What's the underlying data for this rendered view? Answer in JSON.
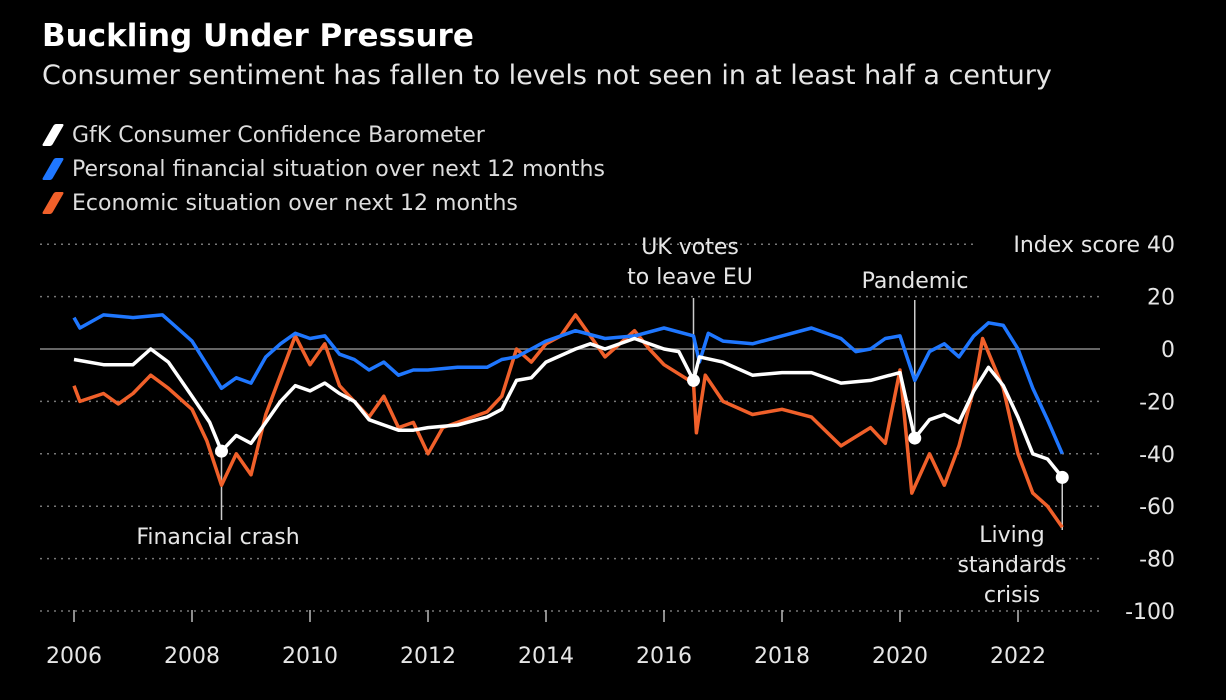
{
  "chart_data": {
    "type": "line",
    "title": "Buckling Under Pressure",
    "subtitle": "Consumer sentiment has fallen to levels not seen in at least half a century",
    "ylabel": "Index score",
    "ylim": [
      -100,
      40
    ],
    "yticks": [
      40,
      20,
      0,
      -20,
      -40,
      -60,
      -80,
      -100
    ],
    "xlim": [
      2006,
      2023.2
    ],
    "xticks": [
      2006,
      2008,
      2010,
      2012,
      2014,
      2016,
      2018,
      2020,
      2022
    ],
    "grid": true,
    "legend_position": "top-left",
    "series": [
      {
        "name": "GfK Consumer Confidence Barometer",
        "color": "#ffffff",
        "x": [
          2006,
          2006.5,
          2007,
          2007.3,
          2007.6,
          2008,
          2008.3,
          2008.5,
          2008.75,
          2009,
          2009.25,
          2009.5,
          2009.75,
          2010,
          2010.25,
          2010.5,
          2010.75,
          2011,
          2011.25,
          2011.5,
          2011.75,
          2012,
          2012.5,
          2013,
          2013.25,
          2013.5,
          2013.75,
          2014,
          2014.5,
          2014.75,
          2015,
          2015.5,
          2016,
          2016.25,
          2016.5,
          2016.6,
          2017,
          2017.5,
          2018,
          2018.5,
          2019,
          2019.5,
          2020,
          2020.25,
          2020.5,
          2020.75,
          2021,
          2021.25,
          2021.5,
          2021.75,
          2022,
          2022.25,
          2022.5,
          2022.75
        ],
        "y": [
          -4,
          -6,
          -6,
          0,
          -5,
          -18,
          -28,
          -39,
          -33,
          -36,
          -28,
          -20,
          -14,
          -16,
          -13,
          -17,
          -20,
          -27,
          -29,
          -31,
          -31,
          -30,
          -29,
          -26,
          -23,
          -12,
          -11,
          -5,
          0,
          2,
          0,
          4,
          0,
          -1,
          -12,
          -3,
          -5,
          -10,
          -9,
          -9,
          -13,
          -12,
          -9,
          -34,
          -27,
          -25,
          -28,
          -16,
          -7,
          -14,
          -26,
          -40,
          -42,
          -49
        ]
      },
      {
        "name": "Personal financial situation over next 12 months",
        "color": "#1f77ff",
        "x": [
          2006,
          2006.1,
          2006.5,
          2007,
          2007.5,
          2007.75,
          2008,
          2008.25,
          2008.5,
          2008.75,
          2009,
          2009.25,
          2009.5,
          2009.75,
          2010,
          2010.25,
          2010.5,
          2010.75,
          2011,
          2011.25,
          2011.5,
          2011.75,
          2012,
          2012.5,
          2013,
          2013.25,
          2013.5,
          2013.75,
          2014,
          2014.5,
          2015,
          2015.5,
          2016,
          2016.5,
          2016.6,
          2016.75,
          2017,
          2017.5,
          2018,
          2018.5,
          2019,
          2019.25,
          2019.5,
          2019.75,
          2020,
          2020.25,
          2020.5,
          2020.75,
          2021,
          2021.25,
          2021.5,
          2021.75,
          2022,
          2022.25,
          2022.5,
          2022.75
        ],
        "y": [
          12,
          8,
          13,
          12,
          13,
          8,
          3,
          -6,
          -15,
          -11,
          -13,
          -3,
          2,
          6,
          4,
          5,
          -2,
          -4,
          -8,
          -5,
          -10,
          -8,
          -8,
          -7,
          -7,
          -4,
          -3,
          0,
          3,
          7,
          4,
          5,
          8,
          5,
          -5,
          6,
          3,
          2,
          5,
          8,
          4,
          -1,
          0,
          4,
          5,
          -12,
          -1,
          2,
          -3,
          5,
          10,
          9,
          0,
          -15,
          -27,
          -40
        ]
      },
      {
        "name": "Economic situation over next 12 months",
        "color": "#f0602a",
        "x": [
          2006,
          2006.1,
          2006.5,
          2006.75,
          2007,
          2007.3,
          2007.6,
          2008,
          2008.25,
          2008.5,
          2008.75,
          2009,
          2009.25,
          2009.5,
          2009.75,
          2010,
          2010.25,
          2010.5,
          2010.75,
          2011,
          2011.25,
          2011.5,
          2011.75,
          2012,
          2012.25,
          2012.5,
          2013,
          2013.25,
          2013.5,
          2013.75,
          2014,
          2014.25,
          2014.5,
          2014.75,
          2015,
          2015.5,
          2015.75,
          2016,
          2016.5,
          2016.55,
          2016.7,
          2017,
          2017.5,
          2018,
          2018.5,
          2019,
          2019.5,
          2019.75,
          2020,
          2020.2,
          2020.5,
          2020.75,
          2021,
          2021.25,
          2021.4,
          2021.75,
          2022,
          2022.25,
          2022.5,
          2022.75
        ],
        "y": [
          -14,
          -20,
          -17,
          -21,
          -17,
          -10,
          -15,
          -23,
          -35,
          -52,
          -40,
          -48,
          -25,
          -10,
          5,
          -6,
          2,
          -14,
          -20,
          -26,
          -18,
          -30,
          -28,
          -40,
          -30,
          -28,
          -24,
          -18,
          0,
          -5,
          2,
          5,
          13,
          5,
          -3,
          7,
          0,
          -6,
          -13,
          -32,
          -10,
          -20,
          -25,
          -23,
          -26,
          -37,
          -30,
          -36,
          -8,
          -55,
          -40,
          -52,
          -37,
          -15,
          4,
          -15,
          -40,
          -55,
          -60,
          -68
        ]
      }
    ],
    "annotations": [
      {
        "text": "Financial crash",
        "x": 2008.5,
        "y": -39
      },
      {
        "text": "UK votes to leave EU",
        "lines": [
          "UK votes",
          "to leave EU"
        ],
        "x": 2016.5,
        "y": -12
      },
      {
        "text": "Pandemic",
        "x": 2020.25,
        "y": -34
      },
      {
        "text": "Living standards crisis",
        "lines": [
          "Living",
          "standards",
          "crisis"
        ],
        "x": 2022.75,
        "y": -49
      }
    ]
  }
}
